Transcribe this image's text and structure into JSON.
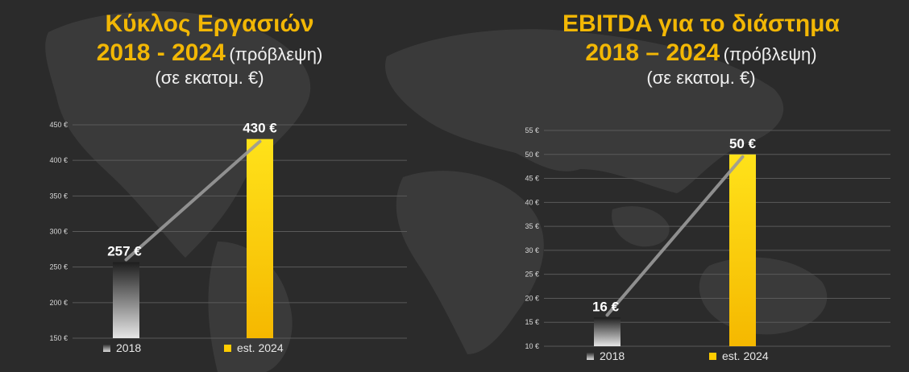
{
  "colors": {
    "background": "#2b2b2b",
    "title_accent": "#f2b705",
    "bar_2024": "#ffcc00",
    "bar_2018_top": "#1e1e1e",
    "bar_2018_bottom": "#e6e6e6",
    "trend_line": "#9a9a9a",
    "grid": "#5a5a5a"
  },
  "chart_data": [
    {
      "type": "bar",
      "title_line1": "Κύκλος Εργασιών",
      "title_years": "2018 - 2024",
      "title_note": "(πρόβλεψη)",
      "unit_line": "(σε εκατομ. €)",
      "categories": [
        "2018",
        "est. 2024"
      ],
      "values": [
        257,
        430
      ],
      "value_labels": [
        "257 €",
        "430 €"
      ],
      "legend": [
        "2018",
        "est. 2024"
      ],
      "legend_position": "bottom",
      "ylim": [
        150,
        450
      ],
      "yticks": [
        150,
        200,
        250,
        300,
        350,
        400,
        450
      ],
      "ytick_labels": [
        "150 €",
        "200 €",
        "250 €",
        "300 €",
        "350 €",
        "400 €",
        "450 €"
      ],
      "grid": true,
      "trend_line": true
    },
    {
      "type": "bar",
      "title_line1": "EBITDA για το διάστημα",
      "title_years": "2018 – 2024",
      "title_note": "(πρόβλεψη)",
      "unit_line": "(σε εκατομ. €)",
      "categories": [
        "2018",
        "est. 2024"
      ],
      "values": [
        16,
        50
      ],
      "value_labels": [
        "16 €",
        "50 €"
      ],
      "legend": [
        "2018",
        "est. 2024"
      ],
      "legend_position": "bottom",
      "ylim": [
        10,
        55
      ],
      "yticks": [
        10,
        15,
        20,
        25,
        30,
        35,
        40,
        45,
        50,
        55
      ],
      "ytick_labels": [
        "10 €",
        "15 €",
        "20 €",
        "25 €",
        "30 €",
        "35 €",
        "40 €",
        "45 €",
        "50 €",
        "55 €"
      ],
      "grid": true,
      "trend_line": true
    }
  ]
}
